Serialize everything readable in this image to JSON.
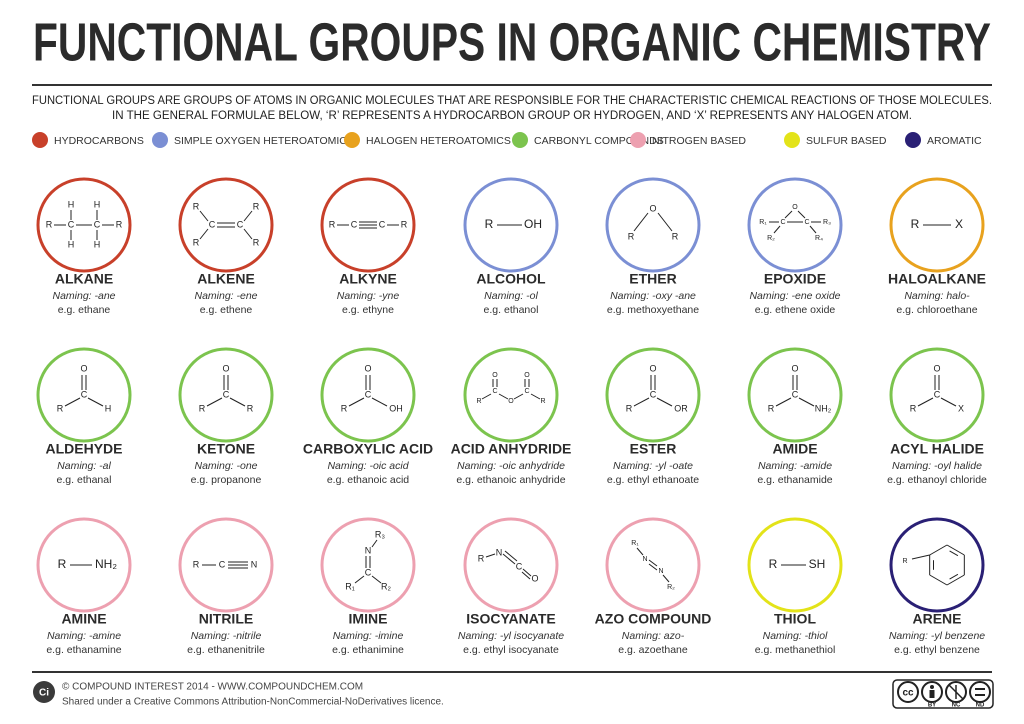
{
  "header": {
    "title": "FUNCTIONAL GROUPS IN ORGANIC CHEMISTRY",
    "description": [
      "FUNCTIONAL GROUPS ARE GROUPS OF ATOMS IN ORGANIC MOLECULES THAT ARE RESPONSIBLE FOR THE CHARACTERISTIC CHEMICAL REACTIONS OF THOSE MOLECULES.",
      "IN THE GENERAL FORMULAE BELOW, ‘R’ REPRESENTS A HYDROCARBON GROUP OR HYDROGEN, AND ‘X’ REPRESENTS ANY HALOGEN ATOM."
    ]
  },
  "legend": [
    {
      "label": "HYDROCARBONS",
      "color": "#c8402a"
    },
    {
      "label": "SIMPLE OXYGEN HETEROATOMICS",
      "color": "#7b8fd4"
    },
    {
      "label": "HALOGEN HETEROATOMICS",
      "color": "#e8a21e"
    },
    {
      "label": "CARBONYL COMPOUNDS",
      "color": "#7cc44e"
    },
    {
      "label": "NITROGEN BASED",
      "color": "#eda0b0"
    },
    {
      "label": "SULFUR BASED",
      "color": "#e3e319"
    },
    {
      "label": "AROMATIC",
      "color": "#2a2075"
    }
  ],
  "groups": [
    {
      "name": "ALKANE",
      "naming": "Naming: -ane",
      "example": "e.g. ethane",
      "color": "#c8402a",
      "atoms": [
        "H",
        "H",
        "R",
        "C",
        "C",
        "R",
        "H",
        "H"
      ]
    },
    {
      "name": "ALKENE",
      "naming": "Naming: -ene",
      "example": "e.g. ethene",
      "color": "#c8402a",
      "atoms": [
        "R",
        "R",
        "C",
        "C",
        "R",
        "R"
      ]
    },
    {
      "name": "ALKYNE",
      "naming": "Naming: -yne",
      "example": "e.g. ethyne",
      "color": "#c8402a",
      "atoms": [
        "R",
        "C",
        "C",
        "R"
      ]
    },
    {
      "name": "ALCOHOL",
      "naming": "Naming: -ol",
      "example": "e.g. ethanol",
      "color": "#7b8fd4",
      "atoms": [
        "R",
        "OH"
      ]
    },
    {
      "name": "ETHER",
      "naming": "Naming: -oxy -ane",
      "example": "e.g. methoxyethane",
      "color": "#7b8fd4",
      "atoms": [
        "O",
        "R",
        "R"
      ]
    },
    {
      "name": "EPOXIDE",
      "naming": "Naming: -ene oxide",
      "example": "e.g. ethene oxide",
      "color": "#7b8fd4",
      "atoms": [
        "O",
        "R₁",
        "C",
        "C",
        "R₃",
        "R₂",
        "R₄"
      ]
    },
    {
      "name": "HALOALKANE",
      "naming": "Naming: halo-",
      "example": "e.g. chloroethane",
      "color": "#e8a21e",
      "atoms": [
        "R",
        "X"
      ]
    },
    {
      "name": "ALDEHYDE",
      "naming": "Naming: -al",
      "example": "e.g. ethanal",
      "color": "#7cc44e",
      "atoms": [
        "O",
        "C",
        "R",
        "H"
      ]
    },
    {
      "name": "KETONE",
      "naming": "Naming: -one",
      "example": "e.g. propanone",
      "color": "#7cc44e",
      "atoms": [
        "O",
        "C",
        "R",
        "R"
      ]
    },
    {
      "name": "CARBOXYLIC ACID",
      "naming": "Naming: -oic acid",
      "example": "e.g. ethanoic acid",
      "color": "#7cc44e",
      "atoms": [
        "O",
        "C",
        "R",
        "OH"
      ]
    },
    {
      "name": "ACID ANHYDRIDE",
      "naming": "Naming: -oic anhydride",
      "example": "e.g. ethanoic anhydride",
      "color": "#7cc44e",
      "atoms": [
        "O",
        "O",
        "R",
        "C",
        "O",
        "C",
        "R"
      ]
    },
    {
      "name": "ESTER",
      "naming": "Naming: -yl -oate",
      "example": "e.g. ethyl ethanoate",
      "color": "#7cc44e",
      "atoms": [
        "O",
        "C",
        "R",
        "OR"
      ]
    },
    {
      "name": "AMIDE",
      "naming": "Naming: -amide",
      "example": "e.g. ethanamide",
      "color": "#7cc44e",
      "atoms": [
        "O",
        "C",
        "R",
        "NH₂"
      ]
    },
    {
      "name": "ACYL HALIDE",
      "naming": "Naming: -oyl halide",
      "example": "e.g. ethanoyl chloride",
      "color": "#7cc44e",
      "atoms": [
        "O",
        "C",
        "R",
        "X"
      ]
    },
    {
      "name": "AMINE",
      "naming": "Naming: -amine",
      "example": "e.g. ethanamine",
      "color": "#eda0b0",
      "atoms": [
        "R",
        "NH₂"
      ]
    },
    {
      "name": "NITRILE",
      "naming": "Naming: -nitrile",
      "example": "e.g. ethanenitrile",
      "color": "#eda0b0",
      "atoms": [
        "R",
        "C",
        "N"
      ]
    },
    {
      "name": "IMINE",
      "naming": "Naming: -imine",
      "example": "e.g. ethanimine",
      "color": "#eda0b0",
      "atoms": [
        "R₃",
        "N",
        "C",
        "R₁",
        "R₂"
      ]
    },
    {
      "name": "ISOCYANATE",
      "naming": "Naming: -yl isocyanate",
      "example": "e.g. ethyl isocyanate",
      "color": "#eda0b0",
      "atoms": [
        "R",
        "N",
        "C",
        "O"
      ]
    },
    {
      "name": "AZO COMPOUND",
      "naming": "Naming: azo-",
      "example": "e.g. azoethane",
      "color": "#eda0b0",
      "atoms": [
        "R₁",
        "N",
        "N",
        "R₂"
      ]
    },
    {
      "name": "THIOL",
      "naming": "Naming: -thiol",
      "example": "e.g. methanethiol",
      "color": "#e3e319",
      "atoms": [
        "R",
        "SH"
      ]
    },
    {
      "name": "ARENE",
      "naming": "Naming: -yl benzene",
      "example": "e.g. ethyl benzene",
      "color": "#2a2075",
      "atoms": [
        "R"
      ]
    }
  ],
  "footer": {
    "logo": "Ci",
    "credit": "© COMPOUND INTEREST 2014 - WWW.COMPOUNDCHEM.COM",
    "license": "Shared under a Creative Commons Attribution-NonCommercial-NoDerivatives licence.",
    "cc_logo": "cc",
    "badge_labels": [
      "BY",
      "NC",
      "ND"
    ]
  }
}
